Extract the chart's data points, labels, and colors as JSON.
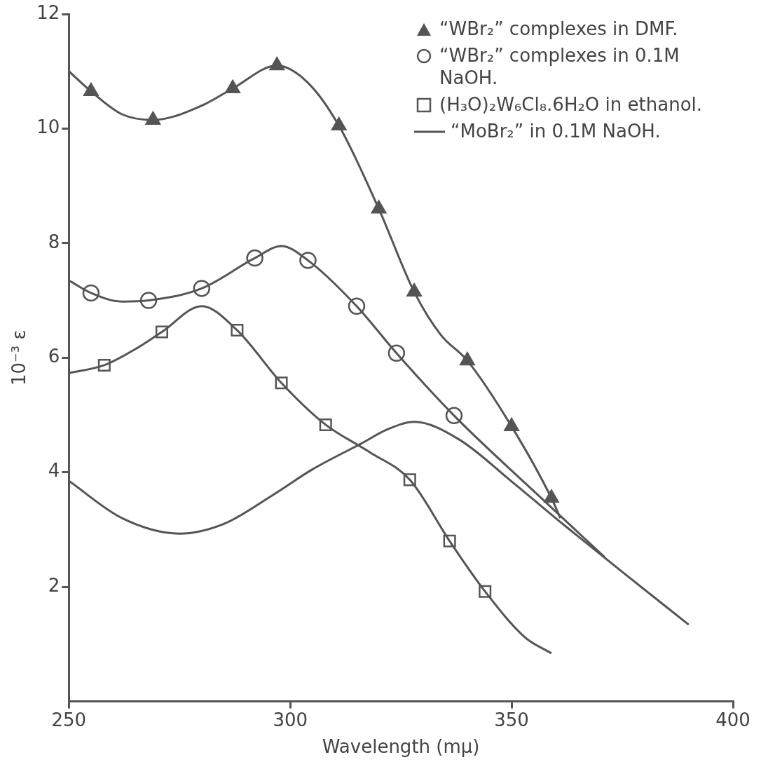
{
  "chart_data": {
    "type": "line",
    "xlabel": "Wavelength (mμ)",
    "ylabel": "10⁻³ ε",
    "xlim": [
      250,
      400
    ],
    "xticks": [
      250,
      300,
      350,
      400
    ],
    "ylim": [
      0,
      12
    ],
    "yticks": [
      2,
      4,
      6,
      8,
      10,
      12
    ],
    "grid": false,
    "legend": "top right",
    "series": [
      {
        "type": "line",
        "color": "#555555",
        "marker": "none",
        "x": [
          250,
          255,
          262,
          269,
          280,
          287,
          297,
          304,
          311,
          320,
          328,
          334,
          340,
          350,
          359,
          361
        ],
        "values": [
          11.0,
          10.65,
          10.25,
          10.15,
          10.4,
          10.7,
          11.1,
          10.8,
          10.05,
          8.6,
          7.15,
          6.4,
          5.95,
          4.8,
          3.55,
          3.2
        ]
      },
      {
        "type": "line",
        "color": "#555555",
        "marker": "none",
        "x": [
          250,
          255,
          262,
          268,
          280,
          292,
          298,
          304,
          315,
          324,
          337,
          356,
          371
        ],
        "values": [
          7.35,
          7.13,
          6.98,
          7.0,
          7.21,
          7.74,
          7.95,
          7.7,
          6.9,
          6.08,
          4.99,
          3.6,
          2.52
        ]
      },
      {
        "type": "line",
        "color": "#555555",
        "marker": "none",
        "x": [
          250,
          258,
          265,
          271,
          280,
          288,
          298,
          308,
          318,
          327,
          336,
          344,
          353,
          359
        ],
        "values": [
          5.73,
          5.87,
          6.15,
          6.45,
          6.9,
          6.48,
          5.56,
          4.83,
          4.35,
          3.87,
          2.8,
          1.92,
          1.12,
          0.84
        ]
      },
      {
        "type": "scatter",
        "name": "“WBr₂” complexes in DMF.",
        "color": "#555555",
        "marker": "triangle",
        "x": [
          255,
          269,
          287,
          297,
          311,
          320,
          328,
          340,
          350,
          359
        ],
        "values": [
          10.65,
          10.15,
          10.7,
          11.1,
          10.05,
          8.6,
          7.15,
          5.95,
          4.8,
          3.55
        ]
      },
      {
        "type": "scatter",
        "name": "“WBr₂” complexes in 0.1M NaOH.",
        "color": "#555555",
        "marker": "circle",
        "x": [
          255,
          268,
          280,
          292,
          304,
          315,
          324,
          337
        ],
        "values": [
          7.13,
          7.0,
          7.21,
          7.74,
          7.7,
          6.9,
          6.08,
          4.99
        ]
      },
      {
        "type": "scatter",
        "name": "(H₃O)₂W₆Cl₈.6H₂O in ethanol.",
        "color": "#555555",
        "marker": "square",
        "x": [
          258,
          271,
          288,
          298,
          308,
          327,
          336,
          344
        ],
        "values": [
          5.87,
          6.45,
          6.48,
          5.56,
          4.83,
          3.87,
          2.8,
          1.92
        ]
      },
      {
        "type": "line",
        "name": "“MoBr₂” in 0.1M NaOH.",
        "color": "#555555",
        "marker": "none",
        "x": [
          250,
          262,
          275,
          285,
          296,
          305,
          316,
          322,
          328,
          338,
          350,
          362,
          375,
          390
        ],
        "values": [
          3.85,
          3.2,
          2.93,
          3.1,
          3.6,
          4.05,
          4.5,
          4.75,
          4.88,
          4.58,
          3.84,
          3.07,
          2.26,
          1.34
        ]
      }
    ]
  }
}
